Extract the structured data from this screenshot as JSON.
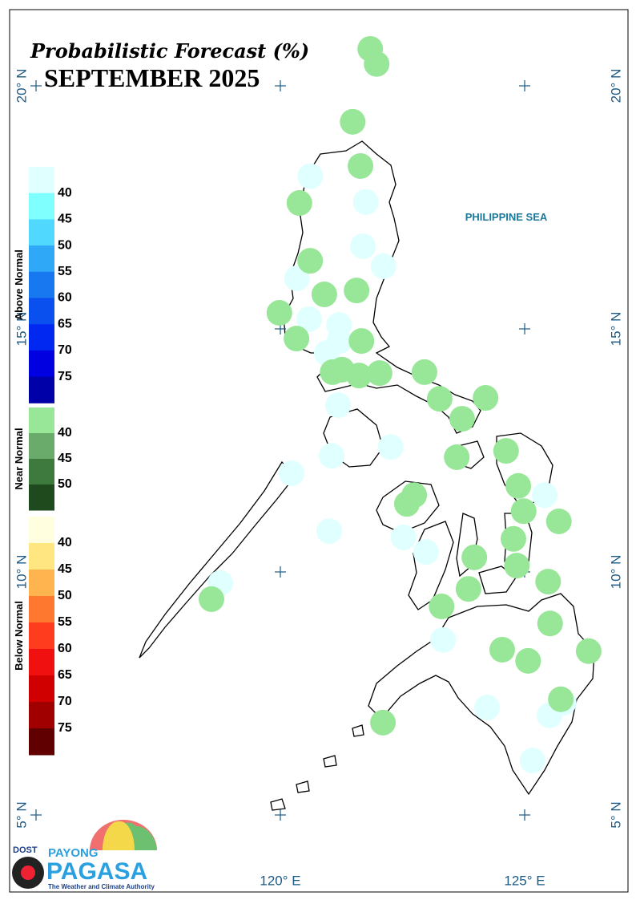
{
  "title": "Probabilistic Forecast (%)",
  "subtitle": "SEPTEMBER 2025",
  "annotation": "PHILIPPINE SEA",
  "grid": {
    "lon": [
      115,
      120,
      125
    ],
    "lat": [
      5,
      10,
      15,
      20
    ]
  },
  "lat_labels": [
    {
      "value": 20,
      "label": "20° N"
    },
    {
      "value": 15,
      "label": "15° N"
    },
    {
      "value": 10,
      "label": "10° N"
    },
    {
      "value": 5,
      "label": "5° N"
    }
  ],
  "lon_labels": [
    {
      "value": 120,
      "label": "120° E"
    },
    {
      "value": 125,
      "label": "125° E"
    }
  ],
  "legend": {
    "groups": [
      {
        "title": "Above Normal",
        "colors": [
          "#e0ffff",
          "#80ffff",
          "#50d8ff",
          "#30a8f8",
          "#1878f0",
          "#0a50ee",
          "#0028f0",
          "#0000e0",
          "#0000a8"
        ],
        "labels": [
          40,
          45,
          50,
          55,
          60,
          65,
          70,
          75
        ],
        "stations": [
          [
            120.61,
            18.14
          ],
          [
            121.75,
            17.61
          ],
          [
            121.69,
            16.7
          ],
          [
            122.11,
            16.29
          ],
          [
            120.34,
            16.04
          ],
          [
            120.59,
            15.2
          ],
          [
            121.2,
            15.08
          ],
          [
            121.21,
            14.75
          ],
          [
            120.95,
            14.5
          ],
          [
            121.18,
            13.43
          ],
          [
            122.26,
            12.57
          ],
          [
            121.05,
            12.39
          ],
          [
            120.23,
            12.03
          ],
          [
            125.41,
            11.58
          ],
          [
            121.0,
            10.84
          ],
          [
            122.52,
            10.71
          ],
          [
            122.98,
            10.41
          ],
          [
            118.77,
            9.77
          ],
          [
            123.33,
            8.6
          ],
          [
            124.23,
            7.21
          ],
          [
            125.51,
            7.05
          ],
          [
            125.8,
            7.31
          ],
          [
            125.16,
            6.12
          ]
        ]
      },
      {
        "title": "Near Normal",
        "colors": [
          "#98e698",
          "#6aaa6a",
          "#3e7a3e",
          "#1e4a1e"
        ],
        "labels": [
          40,
          45,
          50
        ],
        "stations": [
          [
            121.84,
            20.76
          ],
          [
            121.97,
            20.45
          ],
          [
            121.48,
            19.26
          ],
          [
            121.64,
            18.35
          ],
          [
            120.39,
            17.59
          ],
          [
            120.61,
            16.4
          ],
          [
            121.56,
            15.79
          ],
          [
            120.9,
            15.71
          ],
          [
            119.98,
            15.33
          ],
          [
            120.33,
            14.8
          ],
          [
            121.66,
            14.75
          ],
          [
            121.07,
            14.11
          ],
          [
            121.26,
            14.16
          ],
          [
            121.61,
            14.04
          ],
          [
            122.03,
            14.09
          ],
          [
            122.95,
            14.11
          ],
          [
            123.26,
            13.56
          ],
          [
            124.2,
            13.58
          ],
          [
            123.72,
            13.15
          ],
          [
            124.62,
            12.49
          ],
          [
            123.61,
            12.36
          ],
          [
            124.87,
            11.77
          ],
          [
            122.74,
            11.58
          ],
          [
            122.59,
            11.4
          ],
          [
            124.98,
            11.25
          ],
          [
            125.7,
            11.04
          ],
          [
            124.77,
            10.68
          ],
          [
            123.97,
            10.3
          ],
          [
            124.84,
            10.13
          ],
          [
            125.48,
            9.8
          ],
          [
            123.85,
            9.65
          ],
          [
            123.3,
            9.29
          ],
          [
            118.59,
            9.44
          ],
          [
            125.52,
            8.94
          ],
          [
            124.54,
            8.4
          ],
          [
            125.07,
            8.17
          ],
          [
            126.31,
            8.37
          ],
          [
            125.74,
            7.38
          ],
          [
            122.1,
            6.9
          ]
        ]
      },
      {
        "title": "Below Normal",
        "colors": [
          "#ffffe0",
          "#ffe680",
          "#ffb450",
          "#ff7830",
          "#ff3c1e",
          "#f01010",
          "#d00000",
          "#a00000",
          "#600000"
        ],
        "labels": [
          40,
          45,
          50,
          55,
          60,
          65,
          70,
          75
        ],
        "stations": []
      }
    ]
  },
  "logo": {
    "agency": "DOST",
    "brand_top": "PAYONG",
    "brand": "PAGASA",
    "tagline": "The Weather and Climate Authority"
  }
}
